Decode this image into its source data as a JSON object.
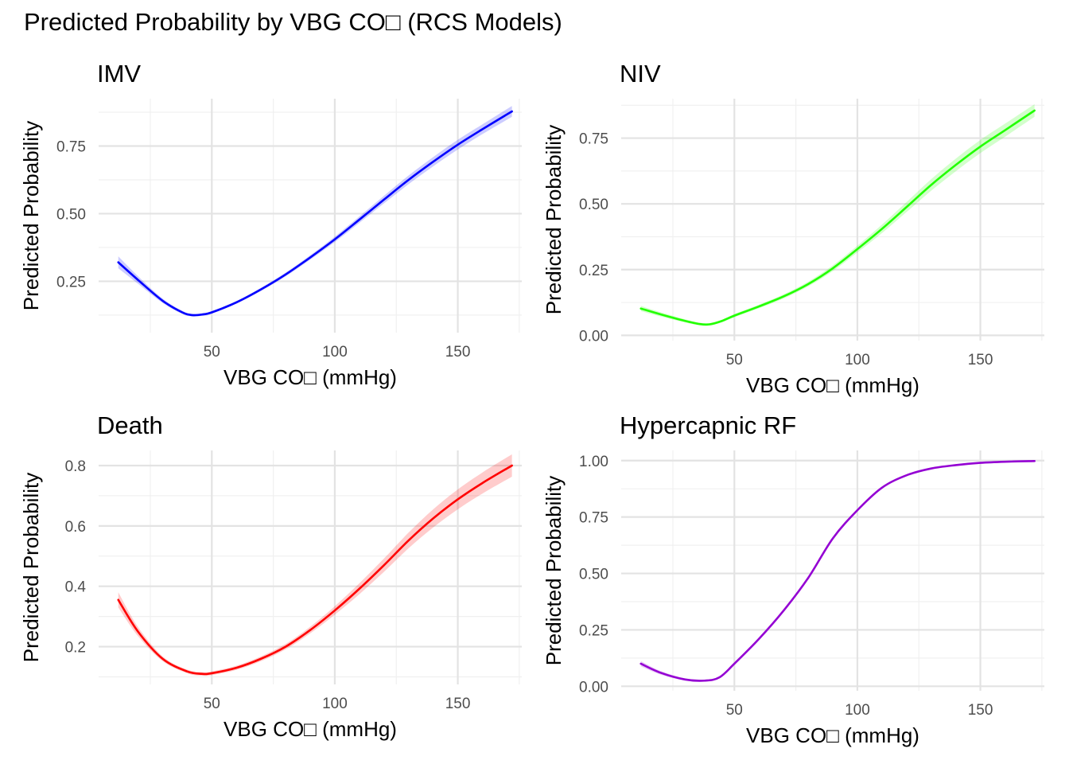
{
  "title": "Predicted Probability by VBG CO□ (RCS Models)",
  "chart_data": [
    {
      "type": "line",
      "title": "IMV",
      "xlabel": "VBG CO□ (mmHg)",
      "ylabel": "Predicted Probability",
      "color": "#0000ff",
      "xlim": [
        4,
        176
      ],
      "ylim": [
        0.06,
        0.925
      ],
      "x_ticks": [
        50,
        100,
        150
      ],
      "y_ticks": [
        0.25,
        0.5,
        0.75
      ],
      "y_tick_labels": [
        "0.25",
        "0.50",
        "0.75"
      ],
      "x": [
        12,
        20,
        30,
        38,
        42,
        46,
        50,
        60,
        70,
        80,
        90,
        100,
        110,
        120,
        130,
        140,
        150,
        160,
        172
      ],
      "y": [
        0.32,
        0.255,
        0.178,
        0.135,
        0.125,
        0.127,
        0.135,
        0.172,
        0.22,
        0.275,
        0.338,
        0.405,
        0.478,
        0.552,
        0.625,
        0.692,
        0.755,
        0.812,
        0.878
      ],
      "ci_width": [
        0.022,
        0.014,
        0.008,
        0.006,
        0.005,
        0.005,
        0.005,
        0.005,
        0.006,
        0.007,
        0.008,
        0.01,
        0.012,
        0.014,
        0.016,
        0.017,
        0.018,
        0.018,
        0.02
      ]
    },
    {
      "type": "line",
      "title": "NIV",
      "xlabel": "VBG CO□ (mmHg)",
      "ylabel": "Predicted Probability",
      "color": "#22ff00",
      "xlim": [
        4,
        176
      ],
      "ylim": [
        -0.02,
        0.9
      ],
      "x_ticks": [
        50,
        100,
        150
      ],
      "y_ticks": [
        0,
        0.25,
        0.5,
        0.75
      ],
      "y_tick_labels": [
        "0.00",
        "0.25",
        "0.50",
        "0.75"
      ],
      "x": [
        12,
        20,
        30,
        36,
        40,
        45,
        50,
        60,
        70,
        80,
        90,
        100,
        110,
        120,
        130,
        140,
        150,
        160,
        172
      ],
      "y": [
        0.102,
        0.08,
        0.055,
        0.043,
        0.042,
        0.055,
        0.075,
        0.11,
        0.148,
        0.195,
        0.255,
        0.328,
        0.405,
        0.488,
        0.572,
        0.648,
        0.718,
        0.78,
        0.855
      ],
      "ci_width": [
        0.01,
        0.008,
        0.006,
        0.005,
        0.005,
        0.005,
        0.006,
        0.007,
        0.008,
        0.009,
        0.011,
        0.013,
        0.016,
        0.019,
        0.022,
        0.024,
        0.025,
        0.025,
        0.024
      ]
    },
    {
      "type": "line",
      "title": "Death",
      "xlabel": "VBG CO□ (mmHg)",
      "ylabel": "Predicted Probability",
      "color": "#ff0000",
      "xlim": [
        4,
        176
      ],
      "ylim": [
        0.075,
        0.85
      ],
      "x_ticks": [
        50,
        100,
        150
      ],
      "y_ticks": [
        0.2,
        0.4,
        0.6,
        0.8
      ],
      "y_tick_labels": [
        "0.2",
        "0.4",
        "0.6",
        "0.8"
      ],
      "x": [
        12,
        20,
        30,
        40,
        46,
        50,
        60,
        70,
        80,
        90,
        100,
        110,
        120,
        130,
        140,
        150,
        160,
        172
      ],
      "y": [
        0.355,
        0.25,
        0.16,
        0.118,
        0.11,
        0.112,
        0.13,
        0.16,
        0.2,
        0.255,
        0.32,
        0.392,
        0.47,
        0.552,
        0.625,
        0.688,
        0.742,
        0.8
      ],
      "ci_width": [
        0.025,
        0.015,
        0.008,
        0.006,
        0.006,
        0.006,
        0.007,
        0.008,
        0.009,
        0.011,
        0.014,
        0.018,
        0.022,
        0.026,
        0.03,
        0.033,
        0.035,
        0.037
      ]
    },
    {
      "type": "line",
      "title": "Hypercapnic RF",
      "xlabel": "VBG CO□ (mmHg)",
      "ylabel": "Predicted Probability",
      "color": "#9400d3",
      "xlim": [
        4,
        176
      ],
      "ylim": [
        -0.02,
        1.045
      ],
      "x_ticks": [
        50,
        100,
        150
      ],
      "y_ticks": [
        0,
        0.25,
        0.5,
        0.75,
        1.0
      ],
      "y_tick_labels": [
        "0.00",
        "0.25",
        "0.50",
        "0.75",
        "1.00"
      ],
      "x": [
        12,
        20,
        30,
        38,
        44,
        50,
        60,
        70,
        80,
        90,
        100,
        110,
        120,
        130,
        140,
        150,
        160,
        172
      ],
      "y": [
        0.1,
        0.06,
        0.03,
        0.025,
        0.04,
        0.1,
        0.21,
        0.335,
        0.48,
        0.655,
        0.78,
        0.88,
        0.935,
        0.965,
        0.98,
        0.99,
        0.995,
        0.998
      ],
      "ci_width": [
        0.012,
        0.008,
        0.005,
        0.004,
        0.004,
        0.005,
        0.006,
        0.006,
        0.006,
        0.006,
        0.005,
        0.004,
        0.003,
        0.002,
        0.002,
        0.001,
        0.001,
        0.001
      ]
    }
  ]
}
